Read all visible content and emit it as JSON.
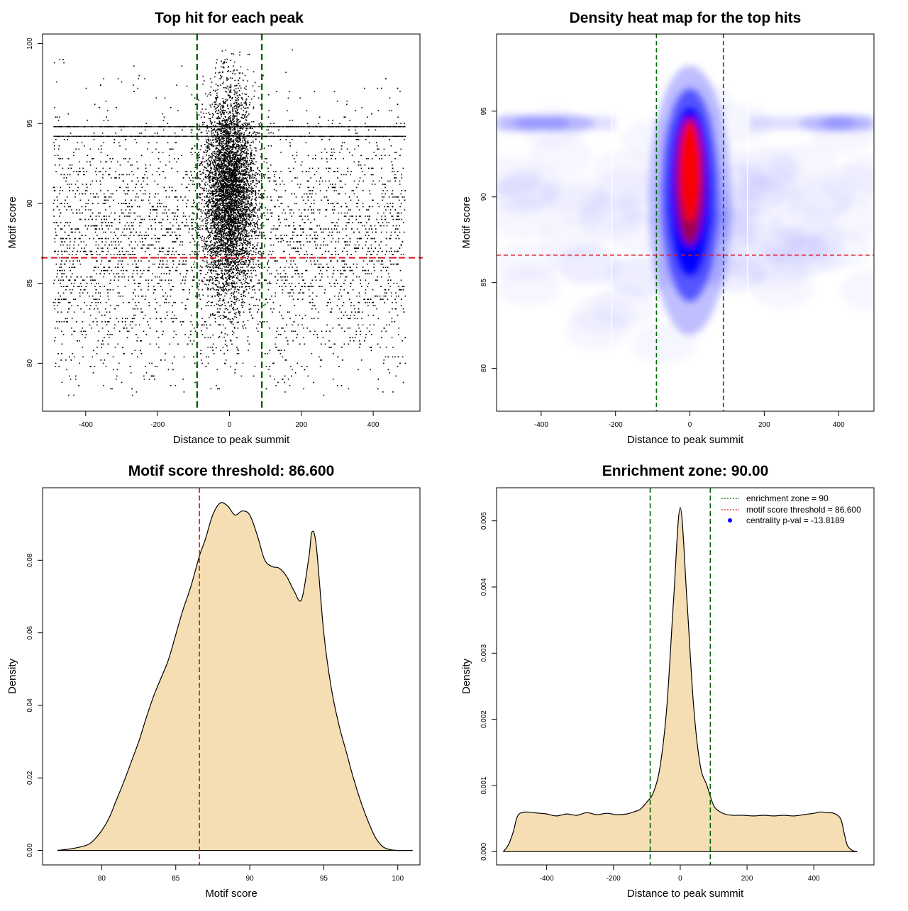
{
  "chart_data": [
    {
      "type": "scatter",
      "title": "Top hit for each peak",
      "xlabel": "Distance to peak summit",
      "ylabel": "Motif score",
      "xlim": [
        -520,
        530
      ],
      "ylim": [
        77,
        100.6
      ],
      "xticks": [
        -400,
        -200,
        0,
        200,
        400
      ],
      "yticks": [
        80,
        85,
        90,
        95,
        100
      ],
      "grid": false,
      "enrichment_zone_lines": [
        -90,
        90
      ],
      "threshold_line": 86.6,
      "point_color": "#000000",
      "zone_color": "#006400",
      "threshold_color": "#e0141e",
      "x_data_range": [
        -490,
        490
      ],
      "score_range": [
        78,
        99.6
      ],
      "center_spread": 35,
      "dense_score_bands": [
        94.2,
        94.8
      ]
    },
    {
      "type": "heatmap",
      "title": "Density heat map for the top hits",
      "xlabel": "Distance to peak summit",
      "ylabel": "Motif score",
      "xlim": [
        -520,
        495
      ],
      "ylim": [
        77.5,
        99.5
      ],
      "xticks": [
        -400,
        -200,
        0,
        200,
        400
      ],
      "yticks": [
        80,
        85,
        90,
        95
      ],
      "grid": false,
      "enrichment_zone_lines": [
        -90,
        90
      ],
      "threshold_line": 86.6,
      "colors": [
        "#ffffff",
        "#0000ff",
        "#ff0000"
      ],
      "hotspot": {
        "x": 0,
        "y": 91.5
      },
      "band_score": 94.3
    },
    {
      "type": "area",
      "title": "Motif score threshold: 86.600",
      "xlabel": "Motif score",
      "ylabel": "Density",
      "xlim": [
        76,
        101.5
      ],
      "ylim": [
        -0.004,
        0.1
      ],
      "xticks": [
        80,
        85,
        90,
        95,
        100
      ],
      "yticks": [
        0.0,
        0.02,
        0.04,
        0.06,
        0.08
      ],
      "ytick_labels": [
        "0.00",
        "0.02",
        "0.04",
        "0.06",
        "0.08"
      ],
      "grid": false,
      "threshold_line": 86.6,
      "fill": "#f5deb3",
      "x": [
        77,
        78,
        79,
        79.5,
        80,
        80.5,
        81,
        81.5,
        82,
        82.5,
        83,
        83.5,
        84,
        84.5,
        85,
        85.5,
        86,
        86.6,
        87,
        87.5,
        88,
        88.5,
        89,
        89.5,
        90,
        90.5,
        91,
        91.5,
        92,
        92.5,
        93,
        93.5,
        94,
        94.2,
        94.5,
        95,
        95.5,
        96,
        96.5,
        97,
        97.5,
        98,
        98.5,
        99,
        99.5,
        100,
        101
      ],
      "y": [
        0,
        0.0005,
        0.0015,
        0.003,
        0.0055,
        0.009,
        0.014,
        0.019,
        0.0245,
        0.03,
        0.0365,
        0.0425,
        0.0475,
        0.0525,
        0.0595,
        0.0665,
        0.0725,
        0.0812,
        0.0858,
        0.0925,
        0.0958,
        0.095,
        0.0925,
        0.0936,
        0.0925,
        0.087,
        0.0802,
        0.0783,
        0.0778,
        0.0755,
        0.0715,
        0.0692,
        0.081,
        0.0878,
        0.0838,
        0.06,
        0.045,
        0.035,
        0.0275,
        0.02,
        0.0135,
        0.008,
        0.0035,
        0.001,
        0.0002,
        0,
        0
      ]
    },
    {
      "type": "area",
      "title": "Enrichment zone: 90.00",
      "xlabel": "Distance to peak summit",
      "ylabel": "Density",
      "xlim": [
        -550,
        580
      ],
      "ylim": [
        -0.0002,
        0.0055
      ],
      "xticks": [
        -400,
        -200,
        0,
        200,
        400
      ],
      "yticks": [
        0.0,
        0.001,
        0.002,
        0.003,
        0.004,
        0.005
      ],
      "ytick_labels": [
        "0.000",
        "0.001",
        "0.002",
        "0.003",
        "0.004",
        "0.005"
      ],
      "grid": false,
      "enrichment_zone_lines": [
        -90,
        90
      ],
      "fill": "#f5deb3",
      "x": [
        -530,
        -515,
        -500,
        -490,
        -480,
        -460,
        -440,
        -420,
        -400,
        -370,
        -340,
        -310,
        -280,
        -250,
        -220,
        -190,
        -160,
        -140,
        -120,
        -100,
        -80,
        -60,
        -40,
        -20,
        0,
        20,
        40,
        60,
        80,
        100,
        120,
        140,
        160,
        190,
        220,
        250,
        280,
        310,
        340,
        370,
        400,
        420,
        440,
        460,
        480,
        490,
        500,
        515,
        530
      ],
      "y": [
        0,
        0.0001,
        0.0003,
        0.0005,
        0.00058,
        0.0006,
        0.00059,
        0.00058,
        0.00057,
        0.00054,
        0.00057,
        0.00055,
        0.00059,
        0.00056,
        0.00058,
        0.00056,
        0.00057,
        0.0006,
        0.00064,
        0.00075,
        0.0009,
        0.0013,
        0.0022,
        0.0038,
        0.0052,
        0.0038,
        0.0022,
        0.0013,
        0.001,
        0.0007,
        0.0006,
        0.00056,
        0.00055,
        0.00055,
        0.00054,
        0.00055,
        0.00054,
        0.00055,
        0.00054,
        0.00056,
        0.00058,
        0.0006,
        0.00059,
        0.00058,
        0.0005,
        0.0003,
        0.0001,
        2e-05,
        0
      ],
      "legend": {
        "position": "top-right",
        "entries": [
          {
            "label": "enrichment zone = 90",
            "color": "#006400",
            "style": "dotted-line"
          },
          {
            "label": "motif score threshold = 86.600",
            "color": "#e0141e",
            "style": "dotted-line"
          },
          {
            "label": "centrality p-val = -13.8189",
            "color": "#0000ff",
            "style": "point"
          }
        ]
      }
    }
  ]
}
